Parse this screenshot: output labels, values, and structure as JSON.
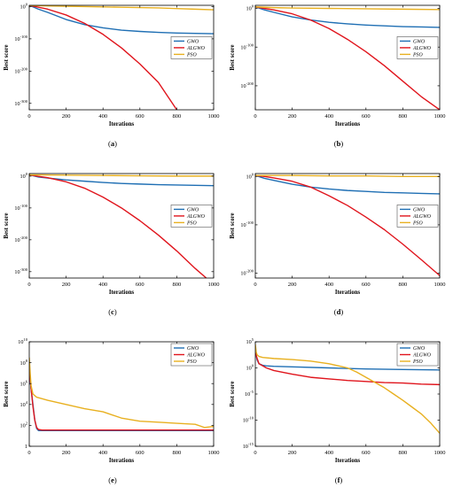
{
  "figure": {
    "panels": [
      {
        "caption_prefix": "(",
        "caption_letter": "a",
        "caption_suffix": ")"
      },
      {
        "caption_prefix": "(",
        "caption_letter": "b",
        "caption_suffix": ")"
      },
      {
        "caption_prefix": "(",
        "caption_letter": "c",
        "caption_suffix": ")"
      },
      {
        "caption_prefix": "(",
        "caption_letter": "d",
        "caption_suffix": ")"
      },
      {
        "caption_prefix": "(",
        "caption_letter": "e",
        "caption_suffix": ")"
      },
      {
        "caption_prefix": "(",
        "caption_letter": "f",
        "caption_suffix": ")"
      }
    ]
  },
  "colors": {
    "GWO": "#1f6fb4",
    "ALGWO": "#e0141c",
    "PSO": "#e8b020",
    "axis": "#000000",
    "legend_border": "#555555"
  },
  "chart_data": [
    {
      "type": "line",
      "xlabel": "Iterations",
      "ylabel": "Best score",
      "xlim": [
        0,
        1000
      ],
      "xticks": [
        0,
        200,
        400,
        600,
        800,
        1000
      ],
      "yscale": "log",
      "ylim_log10": [
        -320,
        4
      ],
      "yticks": [
        {
          "base": "10",
          "exp": "0",
          "log10": 0
        },
        {
          "base": "10",
          "exp": "-100",
          "log10": -100
        },
        {
          "base": "10",
          "exp": "-200",
          "log10": -200
        },
        {
          "base": "10",
          "exp": "-300",
          "log10": -300
        }
      ],
      "legend": {
        "position": "center-right",
        "entries": [
          "GWO",
          "ALGWO",
          "PSO"
        ]
      },
      "series": [
        {
          "name": "GWO",
          "x": [
            0,
            50,
            100,
            200,
            300,
            400,
            500,
            600,
            700,
            800,
            900,
            1000
          ],
          "y_log10": [
            4,
            -8,
            -18,
            -40,
            -56,
            -66,
            -73,
            -77,
            -80,
            -82,
            -83,
            -84
          ]
        },
        {
          "name": "ALGWO",
          "x": [
            0,
            50,
            100,
            200,
            300,
            400,
            500,
            600,
            700,
            800
          ],
          "y_log10": [
            4,
            -2,
            -8,
            -26,
            -52,
            -86,
            -128,
            -178,
            -235,
            -320
          ]
        },
        {
          "name": "PSO",
          "x": [
            0,
            100,
            200,
            300,
            400,
            500,
            600,
            700,
            800,
            900,
            1000
          ],
          "y_log10": [
            4,
            2,
            1,
            0,
            -1,
            -2,
            -3,
            -4,
            -6,
            -8,
            -10
          ]
        }
      ]
    },
    {
      "type": "line",
      "xlabel": "Iterations",
      "ylabel": "Best score",
      "xlim": [
        0,
        1000
      ],
      "xticks": [
        0,
        200,
        400,
        600,
        800,
        1000
      ],
      "yscale": "log",
      "ylim_log10": [
        -262,
        8
      ],
      "yticks": [
        {
          "base": "10",
          "exp": "0",
          "log10": 0
        },
        {
          "base": "10",
          "exp": "-100",
          "log10": -100
        },
        {
          "base": "10",
          "exp": "-200",
          "log10": -200
        }
      ],
      "legend": {
        "position": "center-right",
        "entries": [
          "GWO",
          "ALGWO",
          "PSO"
        ]
      },
      "series": [
        {
          "name": "GWO",
          "x": [
            0,
            50,
            100,
            200,
            300,
            400,
            500,
            600,
            700,
            800,
            900,
            1000
          ],
          "y_log10": [
            4,
            -4,
            -10,
            -22,
            -30,
            -36,
            -40,
            -43,
            -45,
            -47,
            -48,
            -49
          ]
        },
        {
          "name": "ALGWO",
          "x": [
            0,
            50,
            100,
            200,
            300,
            400,
            500,
            600,
            700,
            800,
            900,
            1000
          ],
          "y_log10": [
            4,
            0,
            -4,
            -14,
            -30,
            -52,
            -80,
            -112,
            -148,
            -188,
            -228,
            -262
          ]
        },
        {
          "name": "PSO",
          "x": [
            0,
            100,
            200,
            400,
            600,
            800,
            1000
          ],
          "y_log10": [
            4,
            2,
            1,
            0,
            -1,
            -2,
            -3
          ]
        }
      ]
    },
    {
      "type": "line",
      "xlabel": "Iterations",
      "ylabel": "Best score",
      "xlim": [
        0,
        1000
      ],
      "xticks": [
        0,
        200,
        400,
        600,
        800,
        1000
      ],
      "yscale": "log",
      "ylim_log10": [
        -320,
        8
      ],
      "yticks": [
        {
          "base": "10",
          "exp": "0",
          "log10": 0
        },
        {
          "base": "10",
          "exp": "-100",
          "log10": -100
        },
        {
          "base": "10",
          "exp": "-200",
          "log10": -200
        },
        {
          "base": "10",
          "exp": "-300",
          "log10": -300
        }
      ],
      "legend": {
        "position": "center-right",
        "entries": [
          "GWO",
          "ALGWO",
          "PSO"
        ]
      },
      "series": [
        {
          "name": "GWO",
          "x": [
            0,
            50,
            100,
            200,
            300,
            400,
            500,
            600,
            700,
            800,
            900,
            1000
          ],
          "y_log10": [
            4,
            -3,
            -6,
            -12,
            -16,
            -20,
            -23,
            -25,
            -27,
            -28,
            -29,
            -30
          ]
        },
        {
          "name": "ALGWO",
          "x": [
            0,
            50,
            100,
            200,
            300,
            400,
            500,
            600,
            700,
            800,
            900,
            960
          ],
          "y_log10": [
            4,
            -1,
            -5,
            -18,
            -38,
            -66,
            -100,
            -140,
            -185,
            -235,
            -290,
            -320
          ]
        },
        {
          "name": "PSO",
          "x": [
            0,
            200,
            400,
            600,
            800,
            1000
          ],
          "y_log10": [
            4,
            3,
            2,
            1,
            0,
            0
          ]
        }
      ]
    },
    {
      "type": "line",
      "xlabel": "Iterations",
      "ylabel": "Best score",
      "xlim": [
        0,
        1000
      ],
      "xticks": [
        0,
        200,
        400,
        600,
        800,
        1000
      ],
      "yscale": "log",
      "ylim_log10": [
        -210,
        6
      ],
      "yticks": [
        {
          "base": "10",
          "exp": "0",
          "log10": 0
        },
        {
          "base": "10",
          "exp": "-100",
          "log10": -100
        },
        {
          "base": "10",
          "exp": "-200",
          "log10": -200
        }
      ],
      "legend": {
        "position": "center-right",
        "entries": [
          "GWO",
          "ALGWO",
          "PSO"
        ]
      },
      "series": [
        {
          "name": "GWO",
          "x": [
            0,
            50,
            100,
            200,
            300,
            400,
            500,
            600,
            700,
            800,
            900,
            1000
          ],
          "y_log10": [
            2,
            -4,
            -8,
            -16,
            -22,
            -26,
            -29,
            -31,
            -33,
            -34,
            -35,
            -36
          ]
        },
        {
          "name": "ALGWO",
          "x": [
            0,
            50,
            100,
            200,
            300,
            400,
            500,
            600,
            700,
            800,
            900,
            1000
          ],
          "y_log10": [
            2,
            0,
            -3,
            -10,
            -22,
            -40,
            -60,
            -84,
            -110,
            -140,
            -172,
            -205
          ]
        },
        {
          "name": "PSO",
          "x": [
            0,
            200,
            400,
            600,
            800,
            1000
          ],
          "y_log10": [
            2,
            2,
            1,
            1,
            0,
            0
          ]
        }
      ]
    },
    {
      "type": "line",
      "xlabel": "Iterations",
      "ylabel": "Best score",
      "xlim": [
        0,
        1000
      ],
      "xticks": [
        0,
        200,
        400,
        600,
        800,
        1000
      ],
      "yscale": "log",
      "ylim_log10": [
        0,
        10
      ],
      "yticks": [
        {
          "base": "1",
          "exp": "",
          "log10": 0
        },
        {
          "base": "10",
          "exp": "2",
          "log10": 2
        },
        {
          "base": "10",
          "exp": "4",
          "log10": 4
        },
        {
          "base": "10",
          "exp": "6",
          "log10": 6
        },
        {
          "base": "10",
          "exp": "8",
          "log10": 8
        },
        {
          "base": "10",
          "exp": "10",
          "log10": 10
        }
      ],
      "legend": {
        "position": "top-right",
        "entries": [
          "GWO",
          "ALGWO",
          "PSO"
        ]
      },
      "series": [
        {
          "name": "GWO",
          "x": [
            0,
            10,
            20,
            30,
            40,
            50,
            70,
            100,
            200,
            400,
            600,
            800,
            1000
          ],
          "y_log10": [
            7,
            5.5,
            4,
            2.5,
            1.7,
            1.5,
            1.5,
            1.5,
            1.5,
            1.5,
            1.5,
            1.5,
            1.5
          ]
        },
        {
          "name": "ALGWO",
          "x": [
            0,
            10,
            20,
            30,
            40,
            50,
            70,
            100,
            200,
            400,
            600,
            800,
            1000
          ],
          "y_log10": [
            7.5,
            5.5,
            3.8,
            2.5,
            1.8,
            1.6,
            1.55,
            1.55,
            1.55,
            1.55,
            1.55,
            1.55,
            1.55
          ]
        },
        {
          "name": "PSO",
          "x": [
            0,
            5,
            10,
            20,
            40,
            100,
            200,
            300,
            400,
            500,
            600,
            700,
            800,
            900,
            950,
            1000
          ],
          "y_log10": [
            8.5,
            7,
            5.8,
            5,
            4.7,
            4.4,
            4,
            3.6,
            3.3,
            2.7,
            2.4,
            2.3,
            2.2,
            2.1,
            1.8,
            1.9
          ]
        }
      ]
    },
    {
      "type": "line",
      "xlabel": "Iterations",
      "ylabel": "Best score",
      "xlim": [
        0,
        1000
      ],
      "xticks": [
        0,
        200,
        400,
        600,
        800,
        1000
      ],
      "yscale": "log",
      "ylim_log10": [
        -15,
        5
      ],
      "yticks": [
        {
          "base": "10",
          "exp": "5",
          "log10": 5
        },
        {
          "base": "10",
          "exp": "0",
          "log10": 0
        },
        {
          "base": "10",
          "exp": "-5",
          "log10": -5
        },
        {
          "base": "10",
          "exp": "-10",
          "log10": -10
        },
        {
          "base": "10",
          "exp": "-15",
          "log10": -15
        }
      ],
      "legend": {
        "position": "top-right",
        "entries": [
          "GWO",
          "ALGWO",
          "PSO"
        ]
      },
      "series": [
        {
          "name": "GWO",
          "x": [
            0,
            10,
            20,
            40,
            60,
            100,
            200,
            400,
            600,
            800,
            1000
          ],
          "y_log10": [
            3,
            1.5,
            0.8,
            0.5,
            0.4,
            0.3,
            0.2,
            0,
            -0.2,
            -0.3,
            -0.4
          ]
        },
        {
          "name": "ALGWO",
          "x": [
            0,
            10,
            20,
            40,
            60,
            100,
            200,
            300,
            400,
            500,
            600,
            700,
            800,
            900,
            1000
          ],
          "y_log10": [
            3,
            1.8,
            0.8,
            0.4,
            0,
            -0.5,
            -1.2,
            -1.8,
            -2.1,
            -2.4,
            -2.6,
            -2.8,
            -2.9,
            -3.1,
            -3.2
          ]
        },
        {
          "name": "PSO",
          "x": [
            0,
            5,
            10,
            20,
            40,
            100,
            200,
            300,
            400,
            500,
            550,
            600,
            650,
            700,
            750,
            800,
            850,
            900,
            950,
            1000
          ],
          "y_log10": [
            4.5,
            3,
            2.5,
            2.2,
            2,
            1.8,
            1.6,
            1.3,
            0.8,
            0,
            -0.8,
            -1.8,
            -2.8,
            -3.8,
            -5,
            -6.2,
            -7.5,
            -8.8,
            -10.5,
            -12.5
          ]
        }
      ]
    }
  ]
}
